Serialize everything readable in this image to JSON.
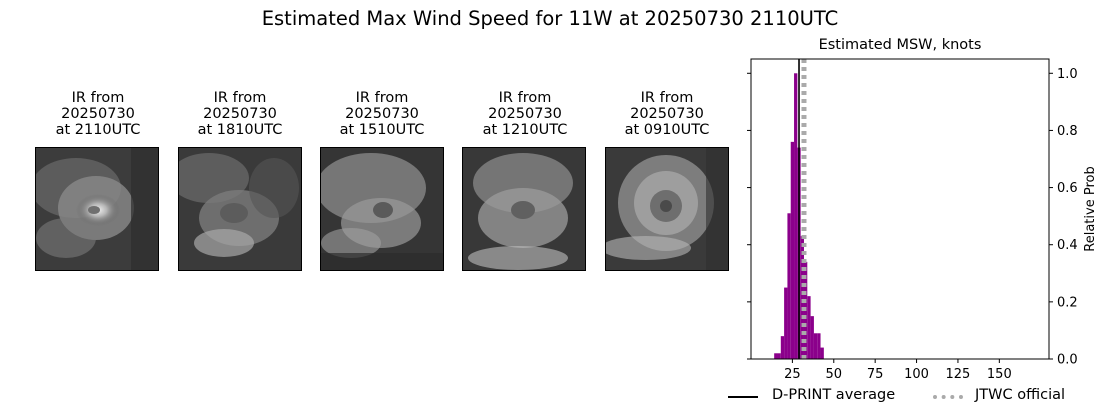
{
  "title": "Estimated Max Wind Speed for 11W at 20250730 2110UTC",
  "ir_panels": [
    {
      "line1": "IR from",
      "line2": "20250730",
      "line3": "at 2110UTC",
      "icon": "ir-satellite-image"
    },
    {
      "line1": "IR from",
      "line2": "20250730",
      "line3": "at 1810UTC",
      "icon": "ir-satellite-image"
    },
    {
      "line1": "IR from",
      "line2": "20250730",
      "line3": "at 1510UTC",
      "icon": "ir-satellite-image"
    },
    {
      "line1": "IR from",
      "line2": "20250730",
      "line3": "at 1210UTC",
      "icon": "ir-satellite-image"
    },
    {
      "line1": "IR from",
      "line2": "20250730",
      "line3": "at 0910UTC",
      "icon": "ir-satellite-image"
    }
  ],
  "chart_data": {
    "type": "bar",
    "title": "Estimated MSW, knots",
    "xlabel": "",
    "ylabel": "Relative Prob",
    "xlim": [
      0,
      180
    ],
    "ylim": [
      0,
      1.05
    ],
    "x_ticks": [
      25,
      50,
      75,
      100,
      125,
      150
    ],
    "y_ticks": [
      0.0,
      0.2,
      0.4,
      0.6,
      0.8,
      1.0
    ],
    "y_tick_labels": [
      "0.0",
      "0.2",
      "0.4",
      "0.6",
      "0.8",
      "1.0"
    ],
    "y_axis_side": "right",
    "bar_color": "#8b008b",
    "bin_width": 2,
    "bins": [
      {
        "x": 15,
        "value": 0.02
      },
      {
        "x": 17,
        "value": 0.02
      },
      {
        "x": 19,
        "value": 0.08
      },
      {
        "x": 21,
        "value": 0.25
      },
      {
        "x": 23,
        "value": 0.51
      },
      {
        "x": 25,
        "value": 0.76
      },
      {
        "x": 27,
        "value": 1.0
      },
      {
        "x": 29,
        "value": 0.74
      },
      {
        "x": 31,
        "value": 0.43
      },
      {
        "x": 33,
        "value": 0.34
      },
      {
        "x": 35,
        "value": 0.22
      },
      {
        "x": 37,
        "value": 0.15
      },
      {
        "x": 39,
        "value": 0.09
      },
      {
        "x": 41,
        "value": 0.09
      },
      {
        "x": 43,
        "value": 0.04
      }
    ],
    "reference_lines": [
      {
        "name": "D-PRINT average",
        "x": 29,
        "color": "#000000",
        "style": "solid"
      },
      {
        "name": "JTWC official",
        "x": 32,
        "color": "#aaaaaa",
        "style": "dotted"
      }
    ],
    "legend_position": "bottom"
  }
}
